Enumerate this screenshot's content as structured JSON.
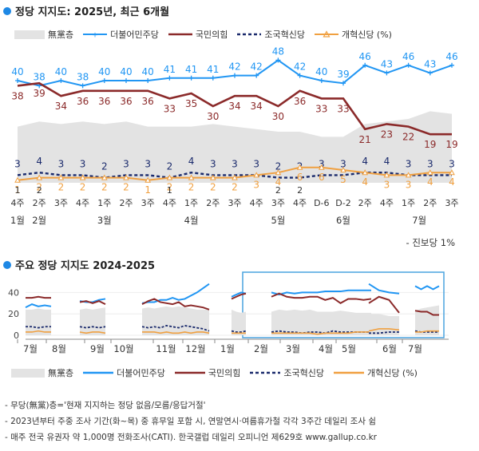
{
  "top": {
    "title": "정당 지지도: 2025년, 최근 6개월",
    "legend": [
      {
        "key": "none",
        "label": "無黨층"
      },
      {
        "key": "dp",
        "label": "더불어민주당"
      },
      {
        "key": "ppp",
        "label": "국민의힘"
      },
      {
        "key": "rebuild",
        "label": "조국혁신당"
      },
      {
        "key": "reform",
        "label": "개혁신당 (%)"
      }
    ],
    "minor_note": "- 진보당 1%"
  },
  "bottom": {
    "title": "주요 정당 지지도 2024-2025",
    "legend": [
      {
        "key": "none",
        "label": "無黨층"
      },
      {
        "key": "dp",
        "label": "더불어민주당"
      },
      {
        "key": "ppp",
        "label": "국민의힘"
      },
      {
        "key": "rebuild",
        "label": "조국혁신당"
      },
      {
        "key": "reform",
        "label": "개혁신당 (%)"
      }
    ]
  },
  "notes": [
    "- 무당(無黨)층='현재 지지하는 정당 없음/모름/응답거절'",
    "- 2023년부터 주중 조사 기간(화~목) 중 휴무일 포함 시, 연말연시·여름휴가철 각각 3주간 데일리 조사 쉼",
    "- 매주 전국 유권자 약 1,000명 전화조사(CATI). 한국갤럽 데일리 오피니언 제629호 www.gallup.co.kr"
  ],
  "colors": {
    "dp": "#2196f3",
    "ppp": "#8b2a2a",
    "rebuild": "#1a2a6c",
    "reform": "#f0a040",
    "none": "#e3e3e3",
    "title_dot": "#1e88e5"
  },
  "chart_data": [
    {
      "type": "line",
      "title": "정당 지지도: 2025년, 최근 6개월",
      "x": [
        "1월4주",
        "2월2주",
        "3주",
        "4주",
        "3월1주",
        "2주",
        "3주",
        "4주",
        "4월1주",
        "2주",
        "3주",
        "4주",
        "5월3주",
        "4주",
        "D-6",
        "6월D-2",
        "2주",
        "4주",
        "7월1주",
        "2주",
        "3주"
      ],
      "week_labels": [
        "4주",
        "2주",
        "3주",
        "4주",
        "1주",
        "2주",
        "3주",
        "4주",
        "1주",
        "2주",
        "3주",
        "4주",
        "3주",
        "4주",
        "D-6",
        "D-2",
        "2주",
        "4주",
        "1주",
        "2주",
        "3주"
      ],
      "month_labels": [
        {
          "label": "1월",
          "at": 0
        },
        {
          "label": "2월",
          "at": 1
        },
        {
          "label": "3월",
          "at": 4
        },
        {
          "label": "4월",
          "at": 8
        },
        {
          "label": "5월",
          "at": 12
        },
        {
          "label": "6월",
          "at": 15
        },
        {
          "label": "7월",
          "at": 18.5
        }
      ],
      "sub_marks": [
        {
          "label": "1",
          "at": 0
        },
        {
          "label": "2",
          "at": 1
        },
        {
          "label": "1",
          "at": 7
        },
        {
          "label": "2",
          "at": 12
        },
        {
          "label": "2",
          "at": 13
        }
      ],
      "series": [
        {
          "key": "dp",
          "name": "더불어민주당",
          "values": [
            40,
            38,
            40,
            38,
            40,
            40,
            40,
            41,
            41,
            41,
            42,
            42,
            48,
            42,
            40,
            39,
            46,
            43,
            46,
            43,
            46
          ]
        },
        {
          "key": "ppp",
          "name": "국민의힘",
          "values": [
            38,
            39,
            34,
            36,
            36,
            36,
            36,
            33,
            35,
            30,
            34,
            34,
            30,
            36,
            33,
            33,
            21,
            23,
            22,
            19,
            19
          ]
        },
        {
          "key": "rebuild",
          "name": "조국혁신당",
          "values": [
            3,
            4,
            3,
            3,
            2,
            3,
            3,
            2,
            4,
            3,
            3,
            3,
            2,
            2,
            3,
            3,
            4,
            4,
            3,
            3,
            3
          ]
        },
        {
          "key": "reform",
          "name": "개혁신당",
          "values": [
            1,
            2,
            2,
            2,
            2,
            2,
            1,
            2,
            2,
            2,
            2,
            3,
            4,
            6,
            6,
            5,
            4,
            3,
            3,
            4,
            4
          ]
        }
      ],
      "area": {
        "key": "none",
        "name": "無黨층",
        "values": [
          22,
          24,
          23,
          24,
          23,
          24,
          22,
          22,
          22,
          23,
          22,
          21,
          20,
          20,
          18,
          18,
          23,
          24,
          25,
          28,
          27
        ]
      },
      "ylim": [
        0,
        55
      ]
    },
    {
      "type": "line",
      "title": "주요 정당 지지도 2024-2025",
      "month_ticks": [
        "7월",
        "8월",
        "9월",
        "10월",
        "11월",
        "12월",
        "1월",
        "2월",
        "3월",
        "4월",
        "5월",
        "6월",
        "7월"
      ],
      "yticks": [
        0,
        20,
        40
      ],
      "highlight": "2025",
      "segments": [
        {
          "dp": [
            26,
            29,
            27,
            28,
            27
          ],
          "ppp": [
            35,
            35,
            36,
            35,
            35
          ],
          "rebuild": [
            8,
            8,
            7,
            8,
            8
          ],
          "reform": [
            3,
            3,
            4,
            3,
            3
          ],
          "none": [
            24,
            24,
            25,
            24,
            24
          ]
        },
        {
          "dp": [
            32,
            31,
            31,
            33,
            34
          ],
          "ppp": [
            31,
            32,
            30,
            32,
            29
          ],
          "rebuild": [
            8,
            7,
            8,
            7,
            8
          ],
          "reform": [
            3,
            2,
            3,
            3,
            2
          ],
          "none": [
            24,
            25,
            24,
            25,
            26
          ]
        },
        {
          "dp": [
            30,
            31,
            31,
            33,
            33,
            35,
            33,
            34,
            37,
            40,
            44,
            48
          ],
          "ppp": [
            29,
            32,
            34,
            31,
            30,
            29,
            31,
            27,
            28,
            27,
            26,
            24
          ],
          "rebuild": [
            8,
            7,
            8,
            7,
            9,
            8,
            7,
            9,
            8,
            7,
            6,
            4
          ],
          "reform": [
            3,
            3,
            3,
            2,
            3,
            2,
            2,
            3,
            2,
            3,
            3,
            2
          ],
          "none": [
            25,
            26,
            25,
            26,
            27,
            26,
            27,
            26,
            25,
            24,
            24,
            24
          ]
        },
        {
          "dp": [
            36,
            38,
            40,
            39
          ],
          "ppp": [
            34,
            36,
            38,
            39
          ],
          "rebuild": [
            4,
            3,
            3,
            4
          ],
          "reform": [
            2,
            2,
            2,
            2
          ],
          "none": [
            24,
            22,
            21,
            22
          ]
        },
        {
          "dp": [
            40,
            38,
            40,
            39,
            40,
            40,
            40,
            41,
            41,
            41,
            42,
            42,
            42,
            42
          ],
          "ppp": [
            36,
            39,
            36,
            35,
            35,
            36,
            36,
            33,
            35,
            30,
            34,
            34,
            33,
            34
          ],
          "rebuild": [
            3,
            4,
            3,
            3,
            2,
            3,
            3,
            2,
            4,
            3,
            3,
            3,
            3,
            3
          ],
          "reform": [
            2,
            2,
            2,
            2,
            2,
            2,
            1,
            2,
            2,
            2,
            2,
            3,
            3,
            3
          ],
          "none": [
            22,
            24,
            23,
            24,
            23,
            24,
            22,
            22,
            22,
            23,
            22,
            21,
            21,
            21
          ]
        },
        {
          "dp": [
            48,
            42,
            40,
            39
          ],
          "ppp": [
            30,
            36,
            33,
            21
          ],
          "rebuild": [
            2,
            2,
            3,
            3
          ],
          "reform": [
            4,
            6,
            6,
            5
          ],
          "none": [
            20,
            20,
            18,
            18
          ]
        },
        {
          "dp": [
            46,
            43,
            46,
            43,
            46
          ],
          "ppp": [
            23,
            22,
            22,
            19,
            19
          ],
          "rebuild": [
            4,
            3,
            3,
            3,
            3
          ],
          "reform": [
            3,
            3,
            4,
            4,
            4
          ],
          "none": [
            23,
            25,
            26,
            27,
            28
          ]
        }
      ]
    }
  ]
}
